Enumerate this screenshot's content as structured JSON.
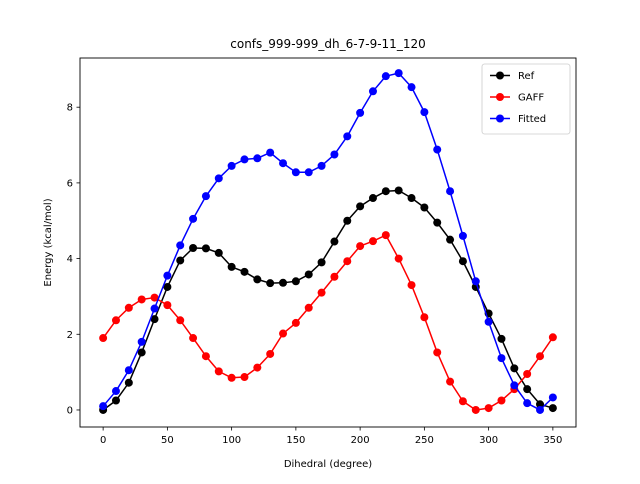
{
  "chart_data": {
    "type": "line",
    "title": "confs_999-999_dh_6-7-9-11_120",
    "xlabel": "Dihedral (degree)",
    "ylabel": "Energy (kcal/mol)",
    "xlim": [
      -18,
      368
    ],
    "ylim": [
      -0.45,
      9.3
    ],
    "xticks": [
      0,
      50,
      100,
      150,
      200,
      250,
      300,
      350
    ],
    "yticks": [
      0,
      2,
      4,
      6,
      8
    ],
    "legend_position": "top-right",
    "x": [
      0,
      10,
      20,
      30,
      40,
      50,
      60,
      70,
      80,
      90,
      100,
      110,
      120,
      130,
      140,
      150,
      160,
      170,
      180,
      190,
      200,
      210,
      220,
      230,
      240,
      250,
      260,
      270,
      280,
      290,
      300,
      310,
      320,
      330,
      340,
      350
    ],
    "series": [
      {
        "name": "Ref",
        "color": "#000000",
        "values": [
          0.0,
          0.25,
          0.72,
          1.52,
          2.4,
          3.25,
          3.95,
          4.28,
          4.27,
          4.15,
          3.78,
          3.65,
          3.45,
          3.35,
          3.36,
          3.4,
          3.58,
          3.9,
          4.45,
          5.0,
          5.38,
          5.6,
          5.78,
          5.8,
          5.6,
          5.35,
          4.95,
          4.5,
          3.93,
          3.25,
          2.55,
          1.88,
          1.1,
          0.55,
          0.15,
          0.05
        ]
      },
      {
        "name": "GAFF",
        "color": "#ff0000",
        "values": [
          1.9,
          2.37,
          2.7,
          2.92,
          2.97,
          2.77,
          2.37,
          1.9,
          1.42,
          1.02,
          0.85,
          0.87,
          1.12,
          1.48,
          2.02,
          2.3,
          2.7,
          3.1,
          3.52,
          3.93,
          4.33,
          4.46,
          4.62,
          4.0,
          3.3,
          2.45,
          1.52,
          0.75,
          0.23,
          0.0,
          0.05,
          0.25,
          0.55,
          0.95,
          1.42,
          1.92
        ]
      },
      {
        "name": "Fitted",
        "color": "#0000ff",
        "values": [
          0.1,
          0.5,
          1.05,
          1.8,
          2.68,
          3.55,
          4.35,
          5.05,
          5.65,
          6.12,
          6.45,
          6.62,
          6.65,
          6.8,
          6.52,
          6.28,
          6.28,
          6.45,
          6.75,
          7.23,
          7.85,
          8.42,
          8.82,
          8.9,
          8.53,
          7.87,
          6.88,
          5.78,
          4.6,
          3.4,
          2.33,
          1.37,
          0.65,
          0.18,
          0.0,
          0.33
        ]
      }
    ]
  }
}
